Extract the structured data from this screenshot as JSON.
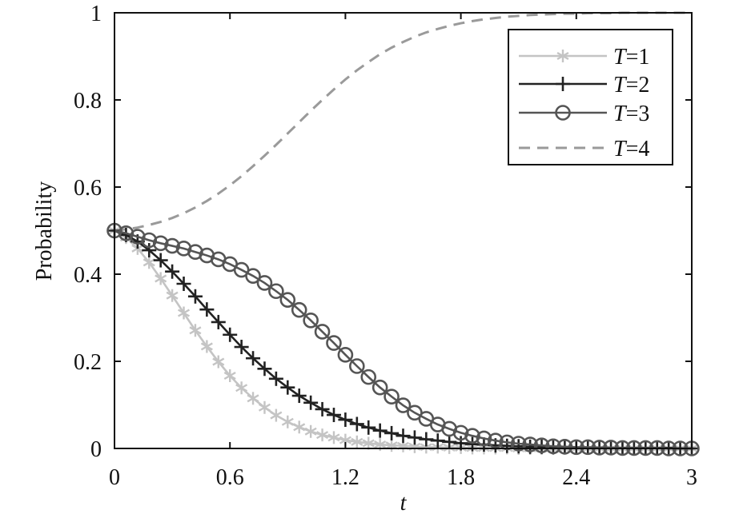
{
  "chart_data": {
    "type": "line",
    "title": "",
    "xlabel": "t",
    "ylabel": "Probability",
    "xlim": [
      0,
      3
    ],
    "ylim": [
      0,
      1
    ],
    "xticks": [
      0,
      0.6,
      1.2,
      1.8,
      2.4,
      3
    ],
    "xtick_labels": [
      "0",
      "0.6",
      "1.2",
      "1.8",
      "2.4",
      "3"
    ],
    "yticks": [
      0,
      0.2,
      0.4,
      0.6,
      0.8,
      1
    ],
    "ytick_labels": [
      "0",
      "0.2",
      "0.4",
      "0.6",
      "0.8",
      "1"
    ],
    "grid": false,
    "legend_position": "top-right",
    "x": [
      0,
      0.06,
      0.12,
      0.18,
      0.24,
      0.3,
      0.36,
      0.42,
      0.48,
      0.54,
      0.6,
      0.66,
      0.72,
      0.78,
      0.84,
      0.9,
      0.96,
      1.02,
      1.08,
      1.14,
      1.2,
      1.26,
      1.32,
      1.38,
      1.44,
      1.5,
      1.56,
      1.62,
      1.68,
      1.74,
      1.8,
      1.86,
      1.92,
      1.98,
      2.04,
      2.1,
      2.16,
      2.22,
      2.28,
      2.34,
      2.4,
      2.46,
      2.52,
      2.58,
      2.64,
      2.7,
      2.76,
      2.82,
      2.88,
      2.94,
      3.0
    ],
    "series": [
      {
        "name_prefix": "T",
        "name_suffix": "=1",
        "color": "#c4c4c4",
        "marker": "asterisk",
        "line": "solid",
        "values": [
          0.5,
          0.484,
          0.459,
          0.427,
          0.39,
          0.351,
          0.311,
          0.271,
          0.234,
          0.199,
          0.167,
          0.139,
          0.115,
          0.094,
          0.076,
          0.061,
          0.049,
          0.039,
          0.031,
          0.025,
          0.019,
          0.015,
          0.012,
          0.009,
          0.007,
          0.006,
          0.004,
          0.003,
          0.003,
          0.002,
          0.002,
          0.001,
          0.001,
          0.001,
          0.001,
          0.0,
          0.0,
          0.0,
          0.0,
          0.0,
          0.0,
          0.0,
          0.0,
          0.0,
          0.0,
          0.0,
          0.0,
          0.0,
          0.0,
          0.0,
          0.0
        ]
      },
      {
        "name_prefix": "T",
        "name_suffix": "=2",
        "color": "#222222",
        "marker": "plus",
        "line": "solid",
        "values": [
          0.5,
          0.49,
          0.475,
          0.455,
          0.432,
          0.406,
          0.378,
          0.349,
          0.319,
          0.29,
          0.261,
          0.233,
          0.207,
          0.183,
          0.16,
          0.14,
          0.121,
          0.105,
          0.09,
          0.077,
          0.066,
          0.056,
          0.048,
          0.041,
          0.035,
          0.029,
          0.025,
          0.021,
          0.018,
          0.015,
          0.012,
          0.01,
          0.009,
          0.007,
          0.006,
          0.005,
          0.004,
          0.004,
          0.003,
          0.003,
          0.002,
          0.002,
          0.002,
          0.001,
          0.001,
          0.001,
          0.001,
          0.001,
          0.001,
          0.0,
          0.0
        ]
      },
      {
        "name_prefix": "T",
        "name_suffix": "=3",
        "color": "#555555",
        "marker": "circle",
        "line": "solid",
        "values": [
          0.5,
          0.494,
          0.486,
          0.478,
          0.471,
          0.465,
          0.459,
          0.451,
          0.443,
          0.434,
          0.423,
          0.41,
          0.396,
          0.38,
          0.361,
          0.341,
          0.318,
          0.294,
          0.268,
          0.242,
          0.215,
          0.189,
          0.164,
          0.14,
          0.119,
          0.099,
          0.082,
          0.068,
          0.055,
          0.045,
          0.036,
          0.029,
          0.023,
          0.018,
          0.014,
          0.011,
          0.009,
          0.007,
          0.005,
          0.004,
          0.003,
          0.003,
          0.002,
          0.002,
          0.001,
          0.001,
          0.001,
          0.001,
          0.0,
          0.0,
          0.0
        ]
      },
      {
        "name_prefix": "T",
        "name_suffix": "=4",
        "color": "#9a9a9a",
        "marker": "none",
        "line": "dashed",
        "values": [
          0.5,
          0.503,
          0.507,
          0.513,
          0.52,
          0.529,
          0.54,
          0.553,
          0.568,
          0.585,
          0.604,
          0.625,
          0.648,
          0.672,
          0.697,
          0.723,
          0.749,
          0.775,
          0.8,
          0.824,
          0.847,
          0.868,
          0.887,
          0.905,
          0.92,
          0.933,
          0.945,
          0.955,
          0.963,
          0.97,
          0.976,
          0.981,
          0.985,
          0.988,
          0.991,
          0.993,
          0.995,
          0.996,
          0.997,
          0.998,
          0.998,
          0.999,
          0.999,
          0.999,
          1.0,
          1.0,
          1.0,
          1.0,
          1.0,
          1.0,
          1.0
        ]
      }
    ]
  }
}
